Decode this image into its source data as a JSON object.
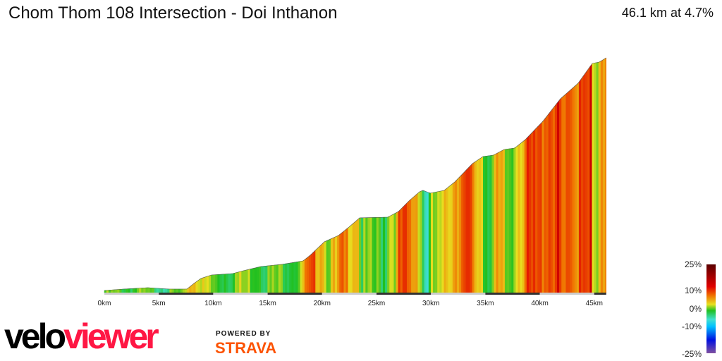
{
  "header": {
    "title": "Chom Thom 108 Intersection - Doi Inthanon",
    "summary": "46.1 km at 4.7%"
  },
  "chart_data": {
    "type": "area",
    "title": "Chom Thom 108 Intersection - Doi Inthanon",
    "xlabel": "",
    "ylabel": "",
    "x_unit": "km",
    "xlim": [
      0,
      46.1
    ],
    "x_ticks": [
      "0km",
      "5km",
      "10km",
      "15km",
      "20km",
      "25km",
      "30km",
      "35km",
      "40km",
      "45km"
    ],
    "distance_km": [
      0,
      1.75,
      4.0,
      5.96,
      7.58,
      8.23,
      8.87,
      9.84,
      11.79,
      12.76,
      14.38,
      16.32,
      18.26,
      18.91,
      20.21,
      21.5,
      22.47,
      23.45,
      26.04,
      27.01,
      27.98,
      28.95,
      29.27,
      29.92,
      31.22,
      32.19,
      33.81,
      34.78,
      35.75,
      36.72,
      37.69,
      38.67,
      40.28,
      41.9,
      43.52,
      44.82,
      45.47,
      46.1
    ],
    "relative_elevation_m": [
      0,
      13,
      26,
      13,
      13,
      65,
      111,
      143,
      156,
      182,
      221,
      241,
      273,
      325,
      449,
      507,
      585,
      670,
      676,
      728,
      826,
      910,
      923,
      897,
      923,
      1001,
      1170,
      1235,
      1248,
      1300,
      1313,
      1391,
      1560,
      1768,
      1911,
      2093,
      2106,
      2145
    ],
    "color_scale": {
      "labels": [
        "25%",
        "10%",
        "0%",
        "-10%",
        "-25%"
      ],
      "stops": [
        {
          "grade": 25,
          "color": "#5a0000"
        },
        {
          "grade": 15,
          "color": "#e00000"
        },
        {
          "grade": 10,
          "color": "#f07000"
        },
        {
          "grade": 5,
          "color": "#e8e020"
        },
        {
          "grade": 0,
          "color": "#20c020"
        },
        {
          "grade": -5,
          "color": "#40e0d0"
        },
        {
          "grade": -10,
          "color": "#00c0ff"
        },
        {
          "grade": -15,
          "color": "#0010e0"
        },
        {
          "grade": -25,
          "color": "#8050a0"
        }
      ]
    }
  },
  "branding": {
    "logo_velo": "velo",
    "logo_viewer": "viewer",
    "powered_by": "POWERED BY",
    "strava": "STRAVA"
  }
}
